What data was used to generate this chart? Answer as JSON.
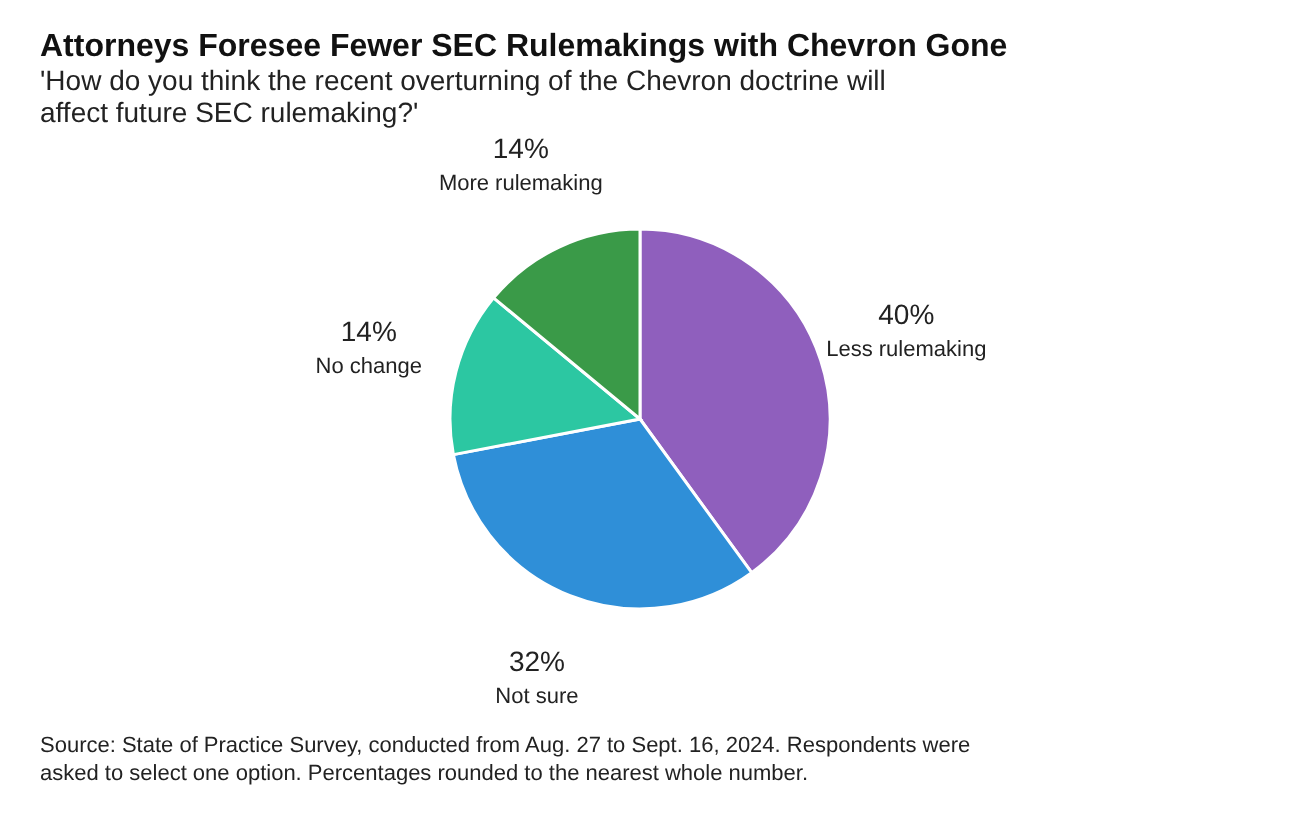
{
  "chart_data": {
    "type": "pie",
    "title": "Attorneys Foresee Fewer SEC Rulemakings with Chevron Gone",
    "subtitle": "'How do you think the recent overturning of the Chevron doctrine will affect future SEC rulemaking?'",
    "categories": [
      "Less rulemaking",
      "Not sure",
      "No change",
      "More rulemaking"
    ],
    "values": [
      40,
      32,
      14,
      14
    ],
    "value_labels": [
      "40%",
      "32%",
      "14%",
      "14%"
    ],
    "colors": [
      "#8f5fbd",
      "#2f8fd8",
      "#2cc7a2",
      "#3a9a48"
    ],
    "legend": false,
    "annotations": [
      "Source: State of Practice Survey, conducted from Aug. 27 to Sept. 16, 2024. Respondents were asked to select one option. Percentages rounded to the nearest whole number."
    ]
  }
}
